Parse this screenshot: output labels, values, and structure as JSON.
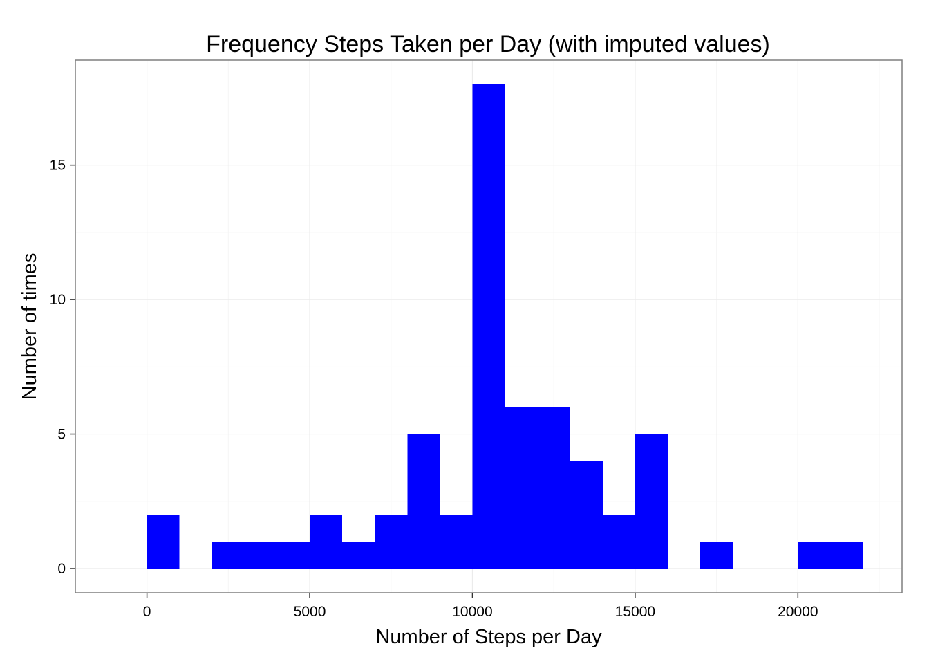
{
  "chart_data": {
    "type": "bar",
    "title": "Frequency Steps Taken per Day (with imputed values)",
    "xlabel": "Number of Steps per Day",
    "ylabel": "Number of times",
    "xlim": [
      -2200,
      23200
    ],
    "ylim": [
      -0.9,
      18.9
    ],
    "x_ticks": [
      0,
      5000,
      10000,
      15000,
      20000
    ],
    "x_tick_labels": [
      "0",
      "5000",
      "10000",
      "15000",
      "20000"
    ],
    "y_ticks": [
      0,
      5,
      10,
      15
    ],
    "y_tick_labels": [
      "0",
      "5",
      "10",
      "15"
    ],
    "x_minor_ticks": [
      2500,
      7500,
      12500,
      17500,
      22500
    ],
    "y_minor_ticks": [
      2.5,
      7.5,
      12.5,
      17.5
    ],
    "grid": true,
    "legend": "none",
    "bins": [
      {
        "x0": 0,
        "x1": 1000,
        "count": 2
      },
      {
        "x0": 1000,
        "x1": 2000,
        "count": 0
      },
      {
        "x0": 2000,
        "x1": 3000,
        "count": 1
      },
      {
        "x0": 3000,
        "x1": 4000,
        "count": 1
      },
      {
        "x0": 4000,
        "x1": 5000,
        "count": 1
      },
      {
        "x0": 5000,
        "x1": 6000,
        "count": 2
      },
      {
        "x0": 6000,
        "x1": 7000,
        "count": 1
      },
      {
        "x0": 7000,
        "x1": 8000,
        "count": 2
      },
      {
        "x0": 8000,
        "x1": 9000,
        "count": 5
      },
      {
        "x0": 9000,
        "x1": 10000,
        "count": 2
      },
      {
        "x0": 10000,
        "x1": 11000,
        "count": 18
      },
      {
        "x0": 11000,
        "x1": 12000,
        "count": 6
      },
      {
        "x0": 12000,
        "x1": 13000,
        "count": 6
      },
      {
        "x0": 13000,
        "x1": 14000,
        "count": 4
      },
      {
        "x0": 14000,
        "x1": 15000,
        "count": 2
      },
      {
        "x0": 15000,
        "x1": 16000,
        "count": 5
      },
      {
        "x0": 16000,
        "x1": 17000,
        "count": 0
      },
      {
        "x0": 17000,
        "x1": 18000,
        "count": 1
      },
      {
        "x0": 18000,
        "x1": 19000,
        "count": 0
      },
      {
        "x0": 19000,
        "x1": 20000,
        "count": 0
      },
      {
        "x0": 20000,
        "x1": 21000,
        "count": 1
      },
      {
        "x0": 21000,
        "x1": 22000,
        "count": 1
      }
    ],
    "colors": {
      "bar_fill": "#0000ff",
      "panel_border": "#7f7f7f",
      "grid_major": "#ebebeb",
      "grid_minor": "#f5f5f5",
      "axis_tick": "#333333"
    }
  }
}
